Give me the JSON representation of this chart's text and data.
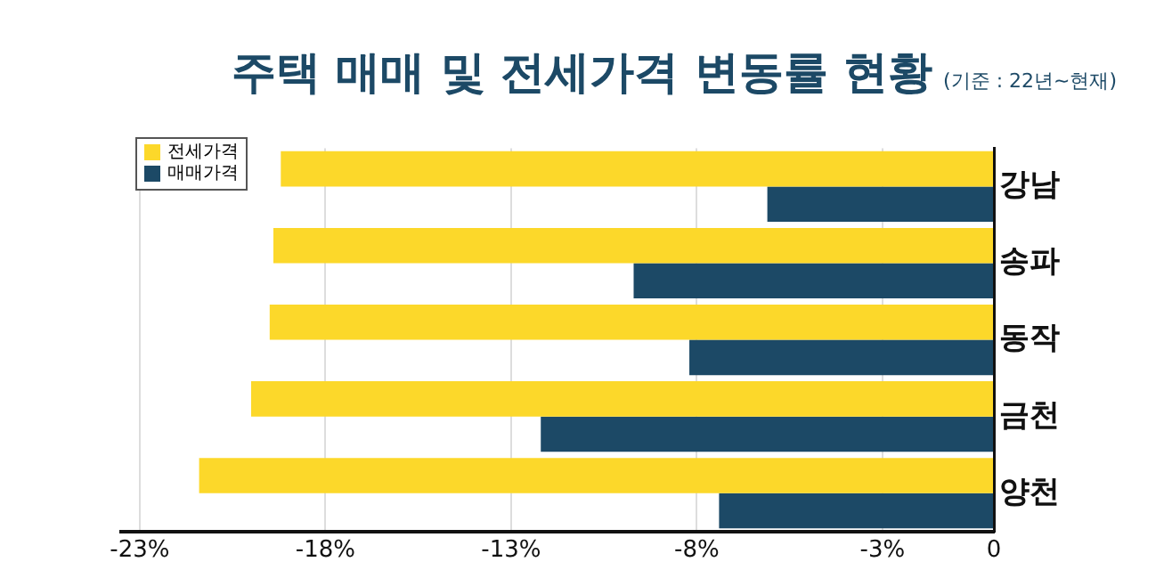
{
  "chart_data": {
    "type": "bar",
    "orientation": "horizontal",
    "title": "주택 매매 및 전세가격 변동률 현황",
    "subtitle": "(기준 : 22년~현재)",
    "categories": [
      "강남",
      "송파",
      "동작",
      "금천",
      "양천"
    ],
    "series": [
      {
        "name": "전세가격",
        "color": "#fcd82a",
        "values": [
          -19.2,
          -19.4,
          -19.5,
          -20.0,
          -21.4
        ]
      },
      {
        "name": "매매가격",
        "color": "#1c4966",
        "values": [
          -6.1,
          -9.7,
          -8.2,
          -12.2,
          -7.4
        ]
      }
    ],
    "xlim": [
      -23.5,
      0
    ],
    "xticks": [
      {
        "value": -23,
        "label": "-23%"
      },
      {
        "value": -18,
        "label": "-18%"
      },
      {
        "value": -13,
        "label": "-13%"
      },
      {
        "value": -8,
        "label": "-8%"
      },
      {
        "value": -3,
        "label": "-3%"
      },
      0
    ],
    "grid": "x",
    "legend": "top left"
  }
}
